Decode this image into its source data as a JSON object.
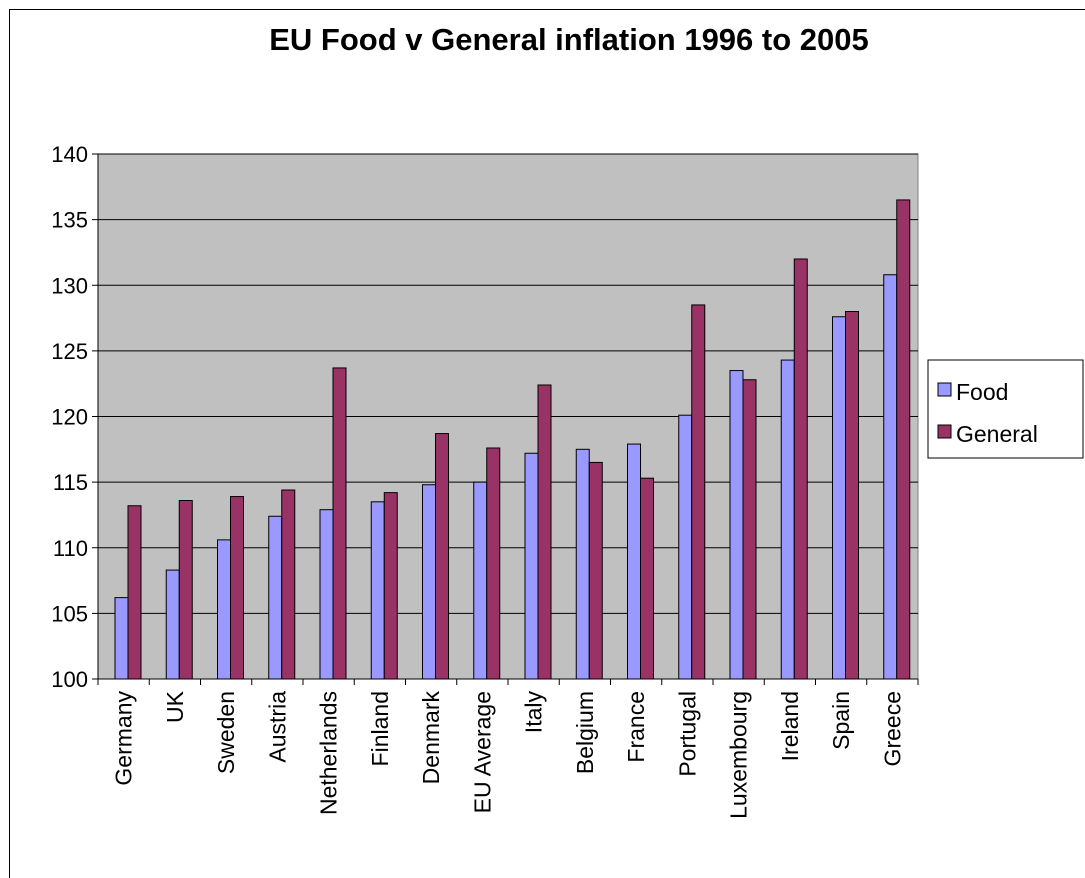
{
  "chart_data": {
    "type": "bar",
    "title": "EU Food v General inflation 1996 to 2005",
    "xlabel": "",
    "ylabel": "",
    "ylim": [
      100,
      140
    ],
    "yticks": [
      100,
      105,
      110,
      115,
      120,
      125,
      130,
      135,
      140
    ],
    "grid": true,
    "legend_position": "right",
    "categories": [
      "Germany",
      "UK",
      "Sweden",
      "Austria",
      "Netherlands",
      "Finland",
      "Denmark",
      "EU Average",
      "Italy",
      "Belgium",
      "France",
      "Portugal",
      "Luxembourg",
      "Ireland",
      "Spain",
      "Greece"
    ],
    "series": [
      {
        "name": "Food",
        "color": "#9999ff",
        "values": [
          106.2,
          108.3,
          110.6,
          112.4,
          112.9,
          113.5,
          114.8,
          115.0,
          117.2,
          117.5,
          117.9,
          120.1,
          123.5,
          124.3,
          127.6,
          130.8
        ]
      },
      {
        "name": "General",
        "color": "#993366",
        "values": [
          113.2,
          113.6,
          113.9,
          114.4,
          123.7,
          114.2,
          118.7,
          117.6,
          122.4,
          116.5,
          115.3,
          128.5,
          122.8,
          132.0,
          128.0,
          136.5
        ]
      }
    ],
    "plot_background": "#c0c0c0"
  }
}
